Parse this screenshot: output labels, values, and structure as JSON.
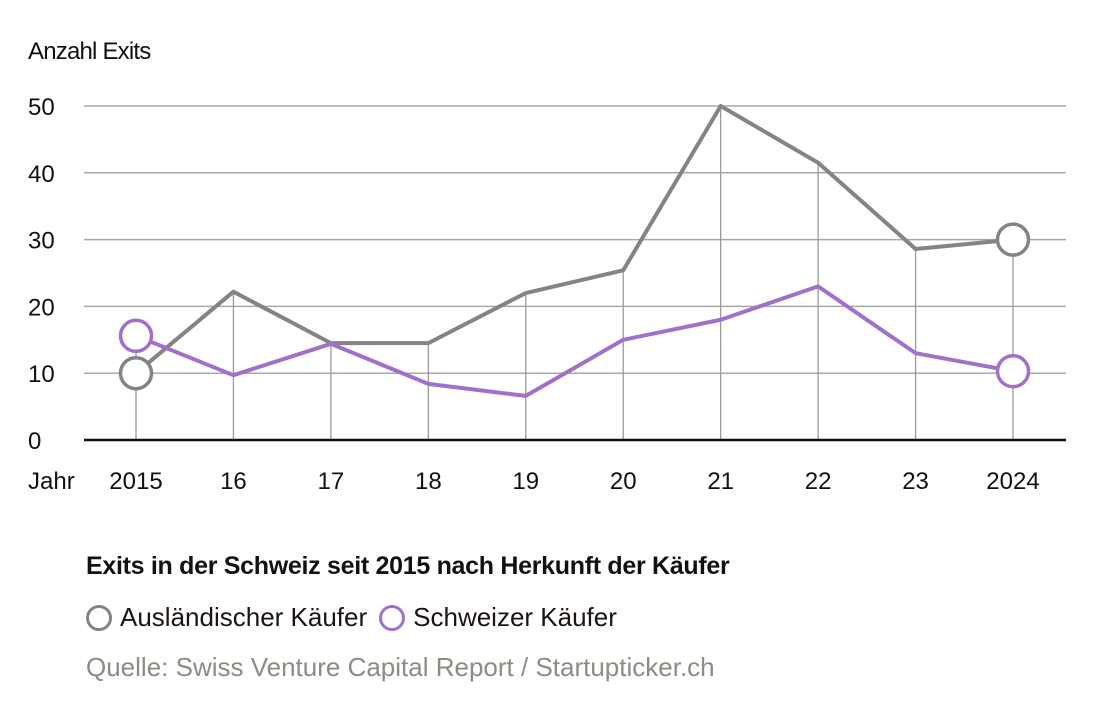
{
  "chart_data": {
    "type": "line",
    "title": "Exits in der Schweiz seit 2015 nach Herkunft der Käufer",
    "ylabel": "Anzahl Exits",
    "xlabel": "Jahr",
    "categories": [
      "2015",
      "16",
      "17",
      "18",
      "19",
      "20",
      "21",
      "22",
      "23",
      "2024"
    ],
    "yticks": [
      0,
      10,
      20,
      30,
      40,
      50
    ],
    "ylim": [
      0,
      50
    ],
    "grid": true,
    "legend_position": "bottom-left",
    "series": [
      {
        "name": "Ausländischer Käufer",
        "color": "#848484",
        "values": [
          10,
          22.2,
          14.5,
          14.5,
          22,
          25.4,
          50,
          41.5,
          28.6,
          30
        ]
      },
      {
        "name": "Schweizer Käufer",
        "color": "#a070cc",
        "values": [
          15.6,
          9.7,
          14.4,
          8.4,
          6.6,
          15,
          18,
          23,
          13,
          10.3
        ]
      }
    ],
    "source": "Quelle: Swiss Venture Capital Report / Startupticker.ch"
  }
}
